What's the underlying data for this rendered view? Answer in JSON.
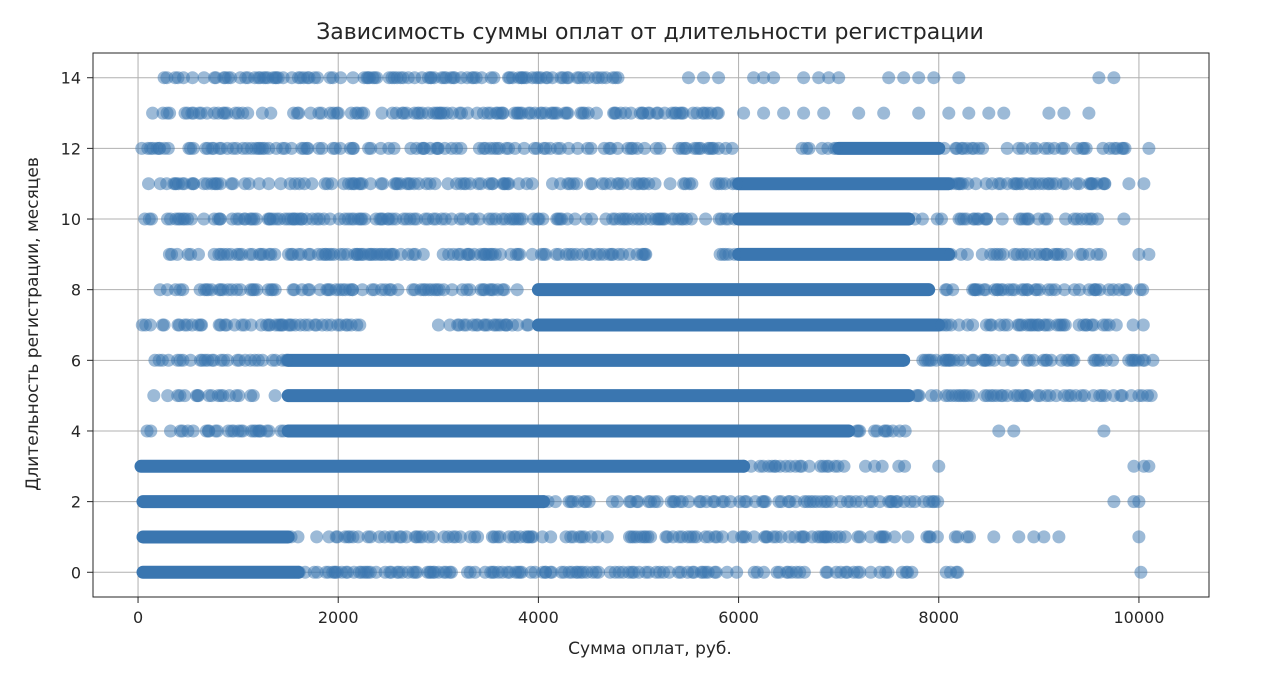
{
  "chart_data": {
    "type": "scatter",
    "title": "Зависимость суммы оплат от длительности регистрации",
    "xlabel": "Сумма оплат, руб.",
    "ylabel": "Длительность регистрации, месяцев",
    "xlim": [
      -450,
      10700
    ],
    "ylim": [
      -0.7,
      14.7
    ],
    "xticks": [
      0,
      2000,
      4000,
      6000,
      8000,
      10000
    ],
    "yticks": [
      0,
      2,
      4,
      6,
      8,
      10,
      12,
      14
    ],
    "grid": true,
    "point_color": "#3a76b0",
    "point_alpha": 0.5,
    "rows": [
      {
        "y": 0,
        "dense": [
          [
            50,
            1600
          ]
        ],
        "scattered": [
          [
            1600,
            8250
          ]
        ],
        "extra": [
          10020
        ]
      },
      {
        "y": 1,
        "dense": [
          [
            50,
            1500
          ]
        ],
        "scattered": [
          [
            1500,
            8300
          ]
        ],
        "extra": [
          8550,
          8800,
          8950,
          9050,
          9200,
          10000
        ]
      },
      {
        "y": 2,
        "dense": [
          [
            50,
            4050
          ]
        ],
        "scattered": [
          [
            4050,
            8050
          ]
        ],
        "extra": [
          9750,
          9950,
          10000
        ]
      },
      {
        "y": 3,
        "dense": [
          [
            30,
            6050
          ]
        ],
        "scattered": [
          [
            6050,
            7700
          ]
        ],
        "extra": [
          8000,
          9950,
          10050,
          10100
        ]
      },
      {
        "y": 4,
        "dense": [
          [
            1500,
            7100
          ]
        ],
        "scattered": [
          [
            80,
            1500
          ],
          [
            7100,
            7700
          ]
        ],
        "extra": [
          8600,
          8750,
          9650
        ]
      },
      {
        "y": 5,
        "dense": [
          [
            1500,
            7700
          ]
        ],
        "scattered": [
          [
            50,
            1500
          ],
          [
            7700,
            10150
          ]
        ],
        "extra": []
      },
      {
        "y": 6,
        "dense": [
          [
            1500,
            7650
          ]
        ],
        "scattered": [
          [
            50,
            1500
          ],
          [
            7650,
            10150
          ]
        ],
        "extra": []
      },
      {
        "y": 7,
        "dense": [
          [
            4000,
            8000
          ]
        ],
        "scattered": [
          [
            30,
            2200
          ],
          [
            3000,
            3900
          ],
          [
            8000,
            10100
          ]
        ],
        "extra": []
      },
      {
        "y": 8,
        "dense": [
          [
            4000,
            7900
          ]
        ],
        "scattered": [
          [
            100,
            3800
          ],
          [
            7900,
            10100
          ]
        ],
        "extra": []
      },
      {
        "y": 9,
        "dense": [
          [
            6000,
            8100
          ]
        ],
        "scattered": [
          [
            150,
            5100
          ],
          [
            5700,
            6000
          ],
          [
            8100,
            9700
          ]
        ],
        "extra": [
          5050,
          10000,
          10100
        ]
      },
      {
        "y": 10,
        "dense": [
          [
            6000,
            7700
          ]
        ],
        "scattered": [
          [
            50,
            6000
          ],
          [
            7700,
            9600
          ]
        ],
        "extra": [
          9850
        ]
      },
      {
        "y": 11,
        "dense": [
          [
            6000,
            8100
          ]
        ],
        "scattered": [
          [
            100,
            6000
          ],
          [
            8100,
            9700
          ]
        ],
        "extra": [
          9900,
          10050
        ]
      },
      {
        "y": 12,
        "dense": [
          [
            7000,
            8000
          ]
        ],
        "scattered": [
          [
            30,
            6000
          ],
          [
            6600,
            7000
          ],
          [
            8000,
            9900
          ]
        ],
        "extra": [
          10100
        ]
      },
      {
        "y": 13,
        "dense": [],
        "scattered": [
          [
            100,
            5800
          ]
        ],
        "extra": [
          6050,
          6250,
          6450,
          6650,
          6850,
          7200,
          7450,
          7800,
          8100,
          8300,
          8500,
          8650,
          9100,
          9250,
          9500
        ]
      },
      {
        "y": 14,
        "dense": [],
        "scattered": [
          [
            200,
            4900
          ]
        ],
        "extra": [
          5500,
          5650,
          5800,
          6150,
          6250,
          6350,
          6650,
          6800,
          6900,
          7000,
          7500,
          7650,
          7800,
          7950,
          8200,
          9600,
          9750
        ]
      }
    ]
  }
}
